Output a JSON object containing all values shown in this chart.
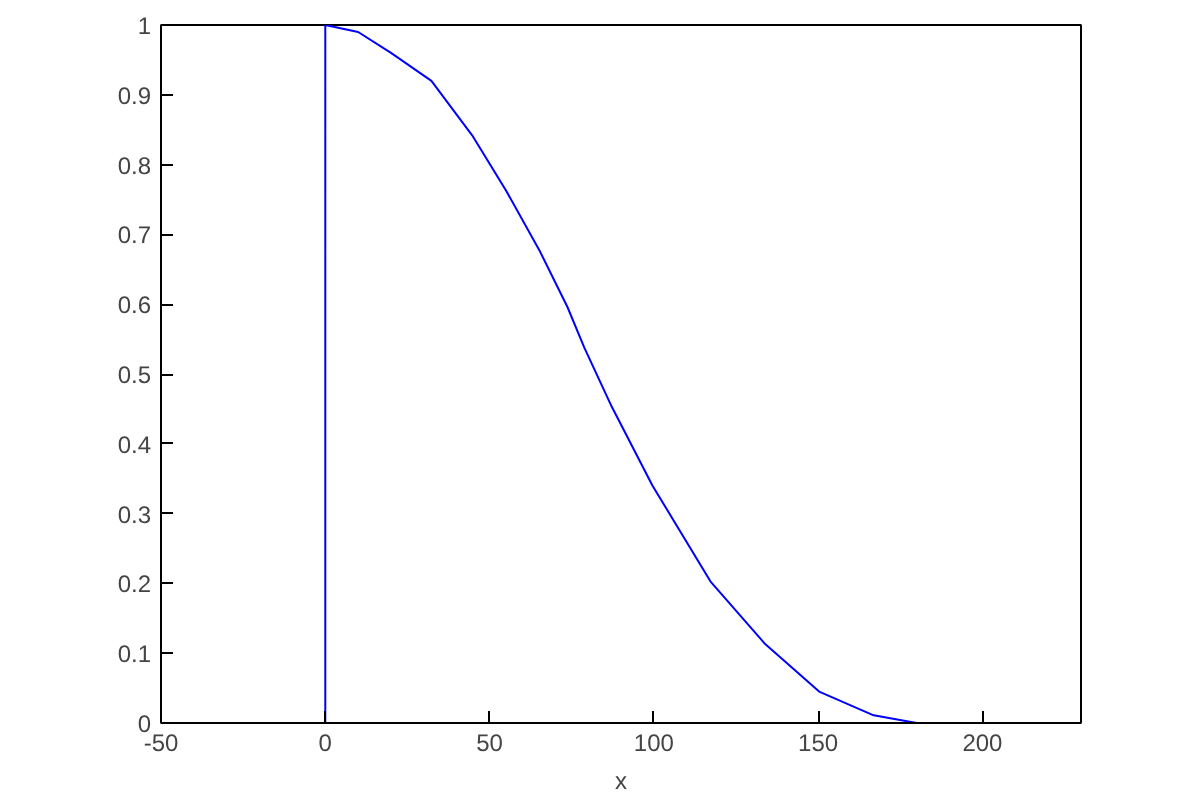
{
  "chart_data": {
    "type": "line",
    "xlabel": "x",
    "xlim": [
      -50,
      230
    ],
    "ylim": [
      0,
      1
    ],
    "xticks": [
      -50,
      0,
      50,
      100,
      150,
      200
    ],
    "yticks": [
      0,
      0.1,
      0.2,
      0.3,
      0.4,
      0.5,
      0.6,
      0.7,
      0.8,
      0.9,
      1
    ],
    "grid": false,
    "marker": "none",
    "line_style": "solid",
    "series": [
      {
        "color": "#0000ff",
        "x": [
          0,
          0,
          10,
          20,
          32.3,
          44.7,
          55,
          65.4,
          73.7,
          78.9,
          87.2,
          99.6,
          117.2,
          133.7,
          150.3,
          166.9,
          180
        ],
        "values": [
          0,
          1,
          0.99,
          0.96,
          0.92,
          0.842,
          0.763,
          0.675,
          0.596,
          0.537,
          0.453,
          0.34,
          0.203,
          0.114,
          0.045,
          0.011,
          0
        ]
      }
    ]
  }
}
